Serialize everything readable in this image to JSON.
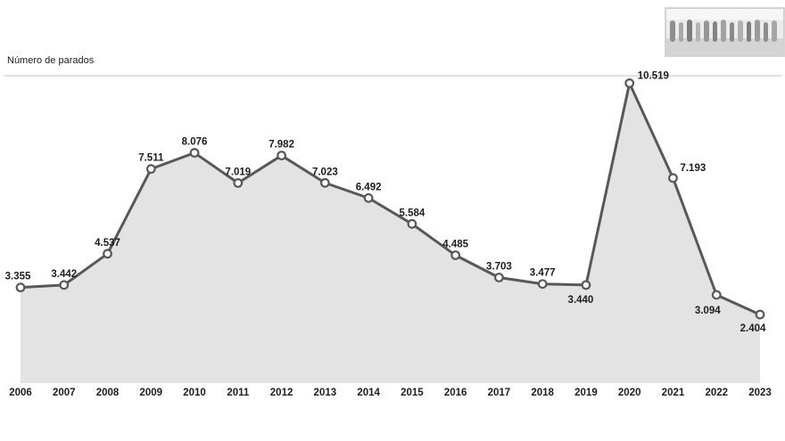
{
  "page": {
    "title_label": "Número de parados"
  },
  "chart_data": {
    "type": "area",
    "title": "Número de parados",
    "categories": [
      "2006",
      "2007",
      "2008",
      "2009",
      "2010",
      "2011",
      "2012",
      "2013",
      "2014",
      "2015",
      "2016",
      "2017",
      "2018",
      "2019",
      "2020",
      "2021",
      "2022",
      "2023"
    ],
    "values": [
      3355,
      3442,
      4537,
      7511,
      8076,
      7019,
      7982,
      7023,
      6492,
      5584,
      4485,
      3703,
      3477,
      3440,
      10519,
      7193,
      3094,
      2404
    ],
    "labels": [
      "3.355",
      "3.442",
      "4.537",
      "7.511",
      "8.076",
      "7.019",
      "7.982",
      "7.023",
      "6.492",
      "5.584",
      "4.485",
      "3.703",
      "3.477",
      "3.440",
      "10.519",
      "7.193",
      "3.094",
      "2.404"
    ],
    "xlabel": "",
    "ylabel": "Número de parados",
    "ylim": [
      0,
      11000
    ],
    "grid": false,
    "legend": "none",
    "colors": {
      "area": "#e3e3e3",
      "line": "#58585a",
      "marker_fill": "#ffffff",
      "label": "#1d1d1b",
      "axis_rule": "#b3b3b3"
    },
    "label_offsets": {
      "0": {
        "dx": -3
      },
      "13": {
        "dx": -6,
        "dy": 20
      },
      "14": {
        "dx": 9,
        "dy": -5,
        "anchor": "start"
      },
      "15": {
        "dx": 8,
        "dy": -8,
        "anchor": "start"
      },
      "16": {
        "dx": -10,
        "dy": 21
      },
      "17": {
        "dx": -8,
        "dy": 19
      }
    }
  }
}
